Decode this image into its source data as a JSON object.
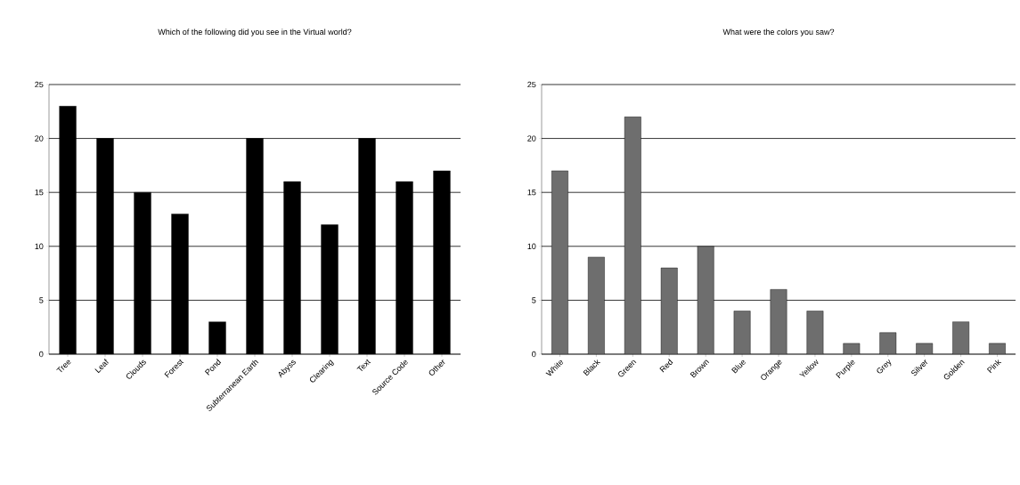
{
  "chart_data": [
    {
      "type": "bar",
      "title": "Which of the following did you see in the Virtual world?",
      "categories": [
        "Tree",
        "Leaf",
        "Clouds",
        "Forest",
        "Pond",
        "Subterranean Earth",
        "Abyss",
        "Clearing",
        "Text",
        "Source Code",
        "Other"
      ],
      "values": [
        23,
        20,
        15,
        13,
        3,
        20,
        16,
        12,
        20,
        16,
        17
      ],
      "color": "#000000",
      "ylim": [
        0,
        25
      ],
      "yticks": [
        0,
        5,
        10,
        15,
        20,
        25
      ],
      "grid": "y"
    },
    {
      "type": "bar",
      "title": "What were the colors you saw?",
      "categories": [
        "White",
        "Black",
        "Green",
        "Red",
        "Brown",
        "Blue",
        "Orange",
        "Yellow",
        "Purple",
        "Grey",
        "Silver",
        "Golden",
        "Pink"
      ],
      "values": [
        17,
        9,
        22,
        8,
        10,
        4,
        6,
        4,
        1,
        2,
        1,
        3,
        1
      ],
      "color": "#6e6e6e",
      "ylim": [
        0,
        25
      ],
      "yticks": [
        0,
        5,
        10,
        15,
        20,
        25
      ],
      "grid": "y"
    }
  ]
}
